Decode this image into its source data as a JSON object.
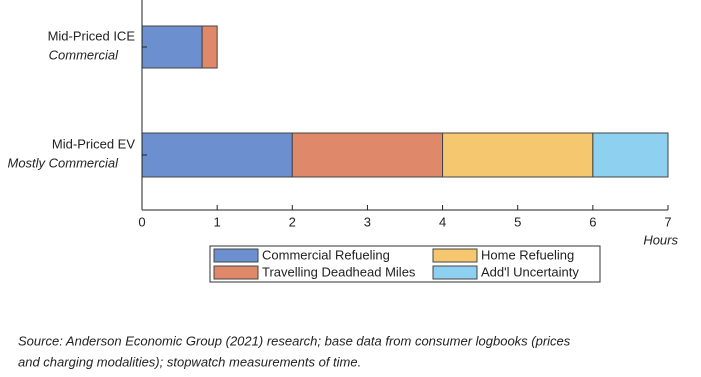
{
  "chart_data": {
    "type": "stacked-barh",
    "categories": [
      [
        "Mid-Priced ICE",
        "Commercial"
      ],
      [
        "Mid-Priced EV",
        "Mostly Commercial"
      ]
    ],
    "series": [
      {
        "name": "Commercial Refueling",
        "color": "#6b8fcf",
        "values": [
          0.8,
          2
        ]
      },
      {
        "name": "Travelling Deadhead Miles",
        "color": "#e0896a",
        "values": [
          0.2,
          2
        ]
      },
      {
        "name": "Home Refueling",
        "color": "#f5c86f",
        "values": [
          0,
          2
        ]
      },
      {
        "name": "Add'l Uncertainty",
        "color": "#8dd0f0",
        "values": [
          0,
          1
        ]
      }
    ],
    "xlabel": "Hours",
    "xlim": [
      0,
      7
    ],
    "xticks": [
      0,
      1,
      2,
      3,
      4,
      5,
      6,
      7
    ],
    "note": [
      "Source: Anderson Economic Group (2021) research; base data from consumer logbooks (prices",
      "and charging modalities); stopwatch measurements of time."
    ]
  }
}
